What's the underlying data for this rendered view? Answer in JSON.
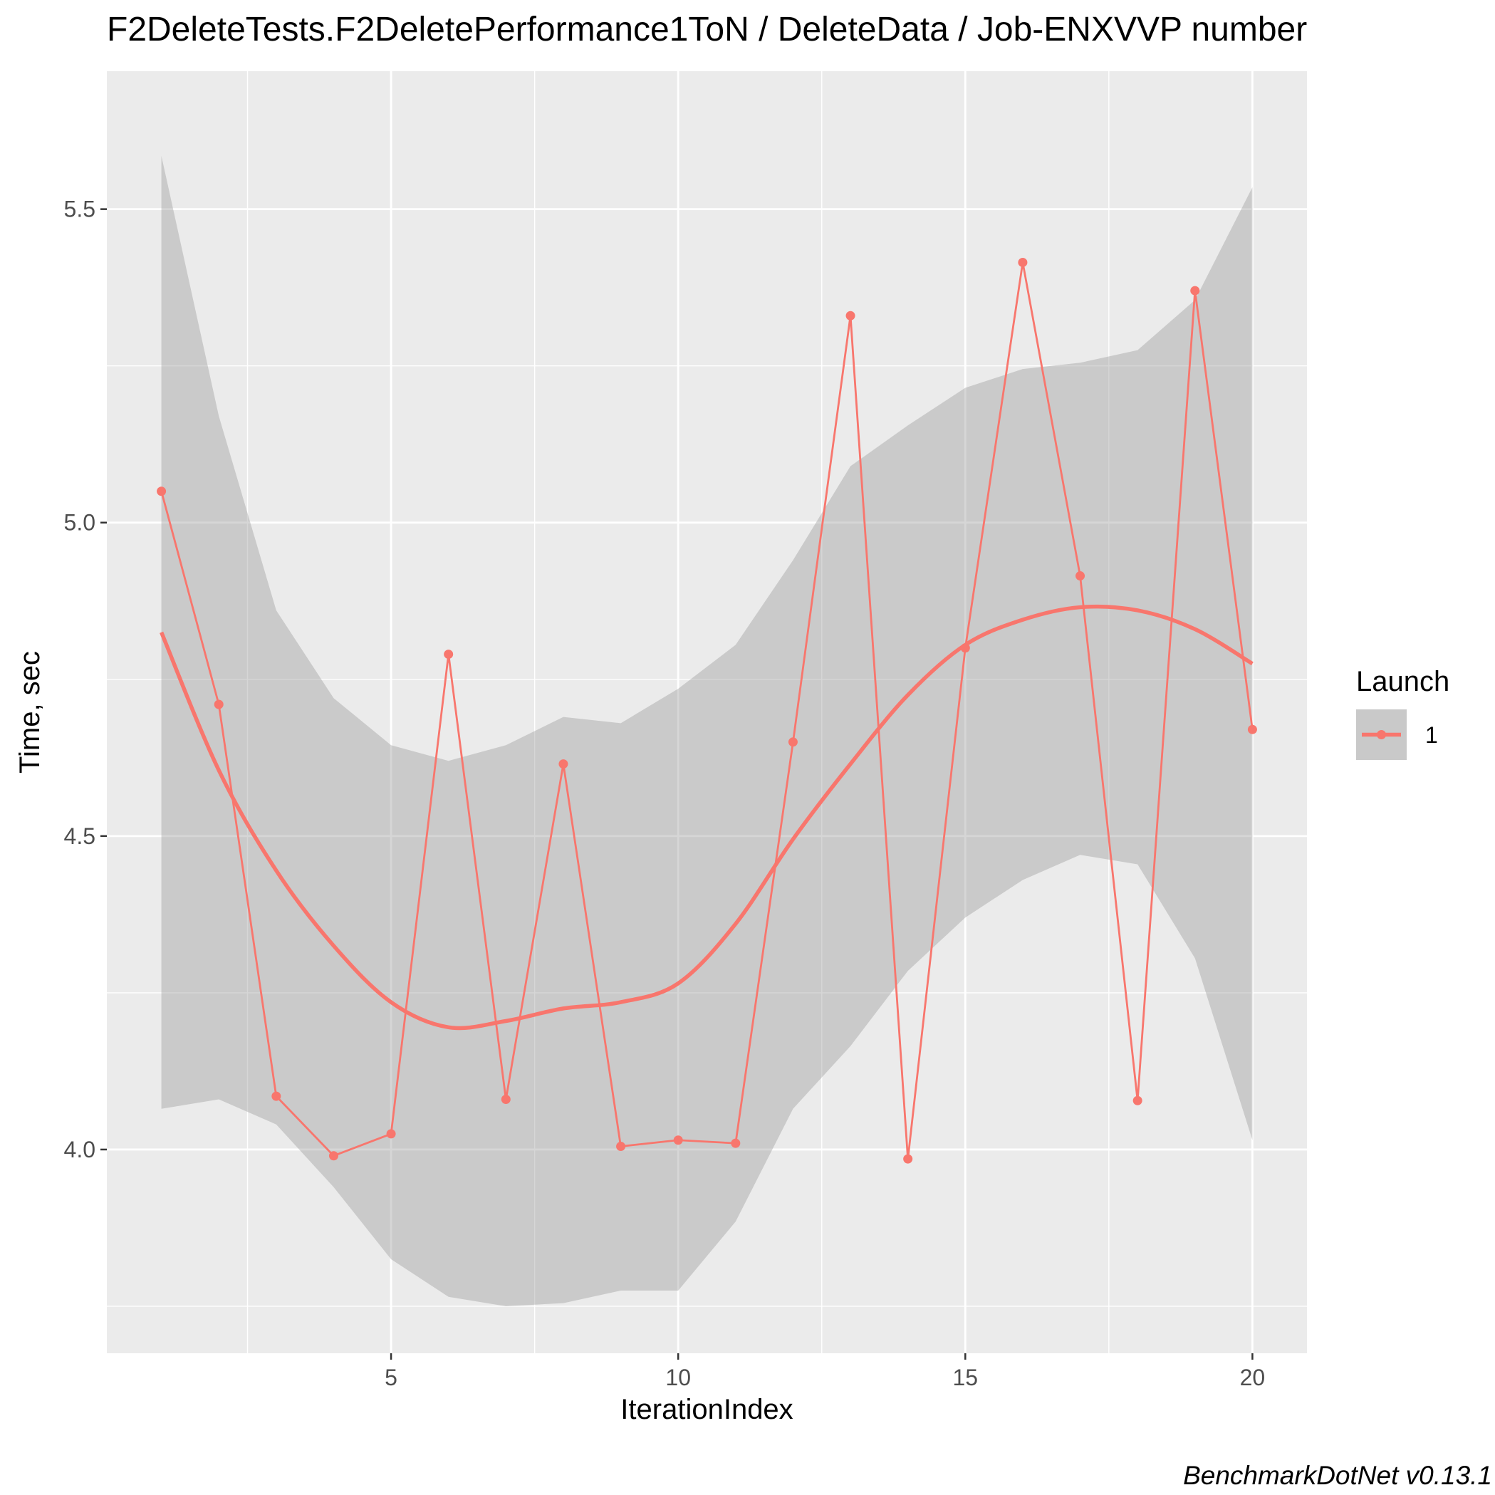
{
  "chart_data": {
    "type": "line",
    "title": "F2DeleteTests.F2DeletePerformance1ToN / DeleteData / Job-ENXVVP number",
    "xlabel": "IterationIndex",
    "ylabel": "Time, sec",
    "caption": "BenchmarkDotNet v0.13.1",
    "xlim": [
      0.05,
      20.95
    ],
    "ylim": [
      3.675,
      5.72
    ],
    "x_ticks": [
      5,
      10,
      15,
      20
    ],
    "x_tick_labels": [
      "5",
      "10",
      "15",
      "20"
    ],
    "y_ticks": [
      4.0,
      4.5,
      5.0,
      5.5
    ],
    "y_tick_labels": [
      "4.0",
      "4.5",
      "5.0",
      "5.5"
    ],
    "grid": true,
    "legend": {
      "title": "Launch",
      "position": "right",
      "entries": [
        "1"
      ]
    },
    "colors": {
      "series": "#f8766d",
      "band": "#c9c9c9",
      "panel": "#ebebeb",
      "grid": "#ffffff"
    },
    "series": [
      {
        "name": "1",
        "x": [
          1,
          2,
          3,
          4,
          5,
          6,
          7,
          8,
          9,
          10,
          11,
          12,
          13,
          14,
          15,
          16,
          17,
          18,
          19,
          20
        ],
        "values": [
          5.05,
          4.71,
          4.085,
          3.99,
          4.025,
          4.79,
          4.08,
          4.615,
          4.005,
          4.015,
          4.01,
          4.65,
          5.33,
          3.985,
          4.8,
          5.415,
          4.915,
          4.078,
          5.37,
          4.67
        ]
      }
    ],
    "smooth": {
      "x": [
        1,
        2,
        3,
        4,
        5,
        6,
        7,
        8,
        9,
        10,
        11,
        12,
        13,
        14,
        15,
        16,
        17,
        18,
        19,
        20
      ],
      "values": [
        4.825,
        4.605,
        4.445,
        4.325,
        4.235,
        4.195,
        4.205,
        4.225,
        4.235,
        4.265,
        4.36,
        4.495,
        4.615,
        4.725,
        4.805,
        4.845,
        4.865,
        4.86,
        4.83,
        4.775
      ],
      "lower": [
        4.065,
        4.08,
        4.04,
        3.94,
        3.825,
        3.765,
        3.75,
        3.755,
        3.775,
        3.775,
        3.885,
        4.065,
        4.165,
        4.285,
        4.37,
        4.43,
        4.47,
        4.455,
        4.305,
        4.015
      ],
      "upper": [
        5.585,
        5.17,
        4.86,
        4.72,
        4.645,
        4.62,
        4.645,
        4.69,
        4.68,
        4.735,
        4.805,
        4.94,
        5.09,
        5.155,
        5.215,
        5.245,
        5.255,
        5.275,
        5.355,
        5.535
      ]
    }
  }
}
